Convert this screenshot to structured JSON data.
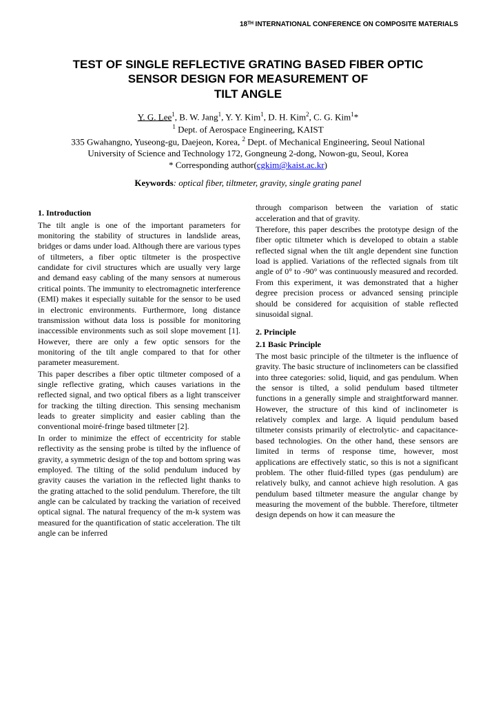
{
  "header": "18ᵀᴴ INTERNATIONAL CONFERENCE ON COMPOSITE MATERIALS",
  "title_l1": "TEST OF SINGLE REFLECTIVE GRATING BASED FIBER OPTIC",
  "title_l2": "SENSOR DESIGN FOR MEASUREMENT OF",
  "title_l3": "TILT ANGLE",
  "authors_primary": "Y. G. Lee",
  "authors_rest": ", B. W. Jang",
  "authors_r2": ", Y. Y. Kim",
  "authors_r3": ", D. H. Kim",
  "authors_r4": ", C. G. Kim",
  "authors_star": "*",
  "aff1": " Dept. of Aerospace Engineering, KAIST",
  "aff2": "335 Gwahangno, Yuseong-gu, Daejeon, Korea, ",
  "aff2b": " Dept. of Mechanical Engineering, Seoul National",
  "aff3": "University of Science and Technology 172, Gongneung 2-dong, Nowon-gu, Seoul, Korea",
  "corresponding_label": "* Corresponding author(",
  "corresponding_email": "cgkim@kaist.ac.kr",
  "corresponding_close": ")",
  "keywords_label": "Keywords",
  "keywords_value": ": optical fiber, tiltmeter, gravity, single grating panel",
  "sec1_head": "1. Introduction",
  "p1": "The tilt angle is one of the important parameters for monitoring the stability of structures in landslide areas, bridges or dams under load. Although there are various types of tiltmeters, a fiber optic tiltmeter is the prospective candidate for civil structures which are usually very large and demand easy cabling of the many sensors at numerous critical points. The immunity to electromagnetic interference (EMI) makes it especially suitable for the sensor to be used in electronic environments. Furthermore, long distance transmission without data loss is possible for monitoring inaccessible environments such as soil slope movement [1]. However, there are only a few optic sensors for the monitoring of the tilt angle compared to that for other parameter measurement.",
  "p2": "This paper describes a fiber optic tiltmeter composed of a single reflective grating, which causes variations in the reflected signal, and two optical fibers as a light transceiver for tracking the tilting direction. This sensing mechanism leads to greater simplicity and easier cabling than the conventional moiré-fringe based tiltmeter [2].",
  "p3": "In order to minimize the effect of eccentricity for stable reflectivity as the sensing probe is tilted by the influence of gravity, a symmetric design of the top and bottom spring was employed. The tilting of the solid pendulum induced by gravity causes the variation in the reflected light thanks to the grating attached to the solid pendulum. Therefore, the tilt angle can be calculated by tracking the variation of received optical signal. The natural frequency of the m-k system was measured for the quantification of static acceleration. The tilt angle can be inferred",
  "p4": "through comparison between the variation of static acceleration and that of gravity.",
  "p5": "Therefore, this paper describes the prototype design of the fiber optic tiltmeter which is developed to obtain a stable reflected signal when the tilt angle dependent sine function load is applied. Variations of the reflected signals from tilt angle of 0° to -90° was continuously measured and recorded. From this experiment, it was demonstrated that a higher degree precision process or advanced sensing principle should be considered for acquisition of stable reflected sinusoidal signal.",
  "sec2_head": "2. Principle",
  "sec21_head": "2.1 Basic Principle",
  "p6": "The most basic principle of the tiltmeter is the influence of gravity. The basic structure of inclinometers can be classified into three categories: solid, liquid, and gas pendulum. When the sensor is tilted, a solid pendulum based tiltmeter functions in a generally simple and straightforward manner. However, the structure of this kind of inclinometer is relatively complex and large. A liquid pendulum based tiltmeter consists primarily of electrolytic- and capacitance-based technologies. On the other hand, these sensors are limited in terms of response time, however, most applications are effectively static, so this is not a significant problem. The other fluid-filled types (gas pendulum) are relatively bulky, and cannot achieve high resolution. A gas pendulum based tiltmeter measure the angular change by measuring the movement of the bubble. Therefore, tiltmeter design depends on how it can measure the"
}
